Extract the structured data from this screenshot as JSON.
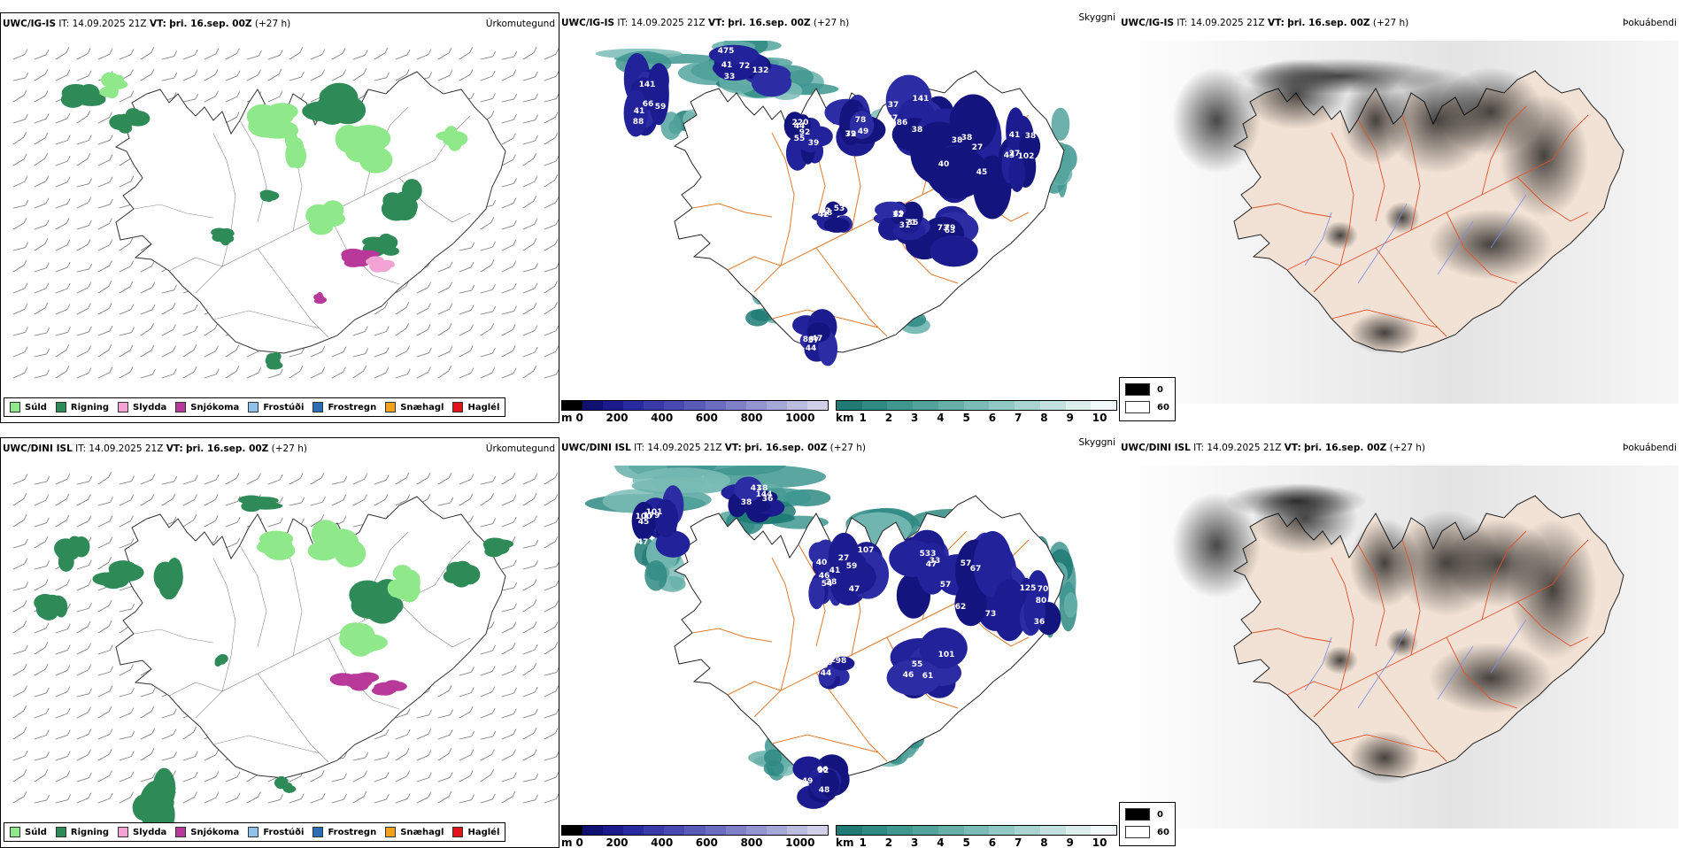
{
  "rows": [
    {
      "model": "UWC/IG-IS",
      "it_label": "IT:",
      "it_value": "14.09.2025 21Z",
      "vt_label": "VT:",
      "vt_value": "þri. 16.sep. 00Z",
      "lead": "(+27 h)",
      "low_numbers": [
        "141",
        "132",
        "220",
        "72",
        "37",
        "38",
        "27",
        "36",
        "31",
        "58",
        "44",
        "66",
        "72",
        "55",
        "49",
        "38",
        "45",
        "102",
        "73",
        "71",
        "53",
        "57",
        "88",
        "41",
        "39",
        "39",
        "37",
        "38",
        "43",
        "63",
        "12",
        "53",
        "86",
        "59",
        "475",
        "44",
        "78",
        "86",
        "40",
        "38",
        "79",
        "49",
        "42",
        "47",
        "41",
        "33",
        "92",
        "71",
        "141",
        "27",
        "41"
      ]
    },
    {
      "model": "UWC/DINI ISL",
      "it_label": "IT:",
      "it_value": "14.09.2025 21Z",
      "vt_label": "VT:",
      "vt_value": "þri. 16.sep. 00Z",
      "lead": "(+27 h)",
      "low_numbers": [
        "179",
        "36",
        "40",
        "27",
        "33",
        "67",
        "70",
        "61",
        "98",
        "92",
        "101",
        "38",
        "46",
        "47",
        "57",
        "57",
        "80",
        "101",
        "44",
        "48",
        "47",
        "38",
        "41",
        "59",
        "533",
        "73",
        "125",
        "55",
        "115",
        "66",
        "100",
        "41",
        "54",
        "107",
        "47",
        "62",
        "36",
        "46",
        "92",
        "49",
        "45",
        "144",
        "28"
      ]
    }
  ],
  "panels": {
    "precip_type": "Úrkomutegund",
    "sky": "Skyggni",
    "fog": "Þokuábendi"
  },
  "precip_legend": [
    {
      "label": "Súld",
      "color": "#8fe88a"
    },
    {
      "label": "Rigning",
      "color": "#2e8b57"
    },
    {
      "label": "Slydda",
      "color": "#f2a3d4"
    },
    {
      "label": "Snjókoma",
      "color": "#b8399a"
    },
    {
      "label": "Frostúði",
      "color": "#8ec1ee"
    },
    {
      "label": "Frostregn",
      "color": "#2d6db5"
    },
    {
      "label": "Snæhagl",
      "color": "#f0a01a"
    },
    {
      "label": "Haglél",
      "color": "#e0151b"
    }
  ],
  "cloud_base_legend": {
    "unit": "m",
    "ticks": [
      "0",
      "200",
      "400",
      "600",
      "800",
      "1000"
    ],
    "colors": [
      "#000000",
      "#101070",
      "#1a1a8c",
      "#2a2aa0",
      "#3a3aa8",
      "#4848b0",
      "#5a5ab8",
      "#6c6cc0",
      "#8080c8",
      "#9494d0",
      "#a8a8d8",
      "#bcbce0",
      "#d0d0ea"
    ]
  },
  "visibility_legend": {
    "unit": "km",
    "ticks": [
      "1",
      "2",
      "3",
      "4",
      "5",
      "6",
      "7",
      "8",
      "9",
      "10"
    ],
    "colors": [
      "#1f7a74",
      "#2f8a84",
      "#409790",
      "#52a39c",
      "#66afa9",
      "#7bbcb6",
      "#92c8c3",
      "#a9d4d0",
      "#c2e1de",
      "#dceeec",
      "#f2f8f7"
    ]
  },
  "fog_legend": [
    {
      "label": "0",
      "color": "#000000"
    },
    {
      "label": "60",
      "color": "#ffffff"
    }
  ]
}
